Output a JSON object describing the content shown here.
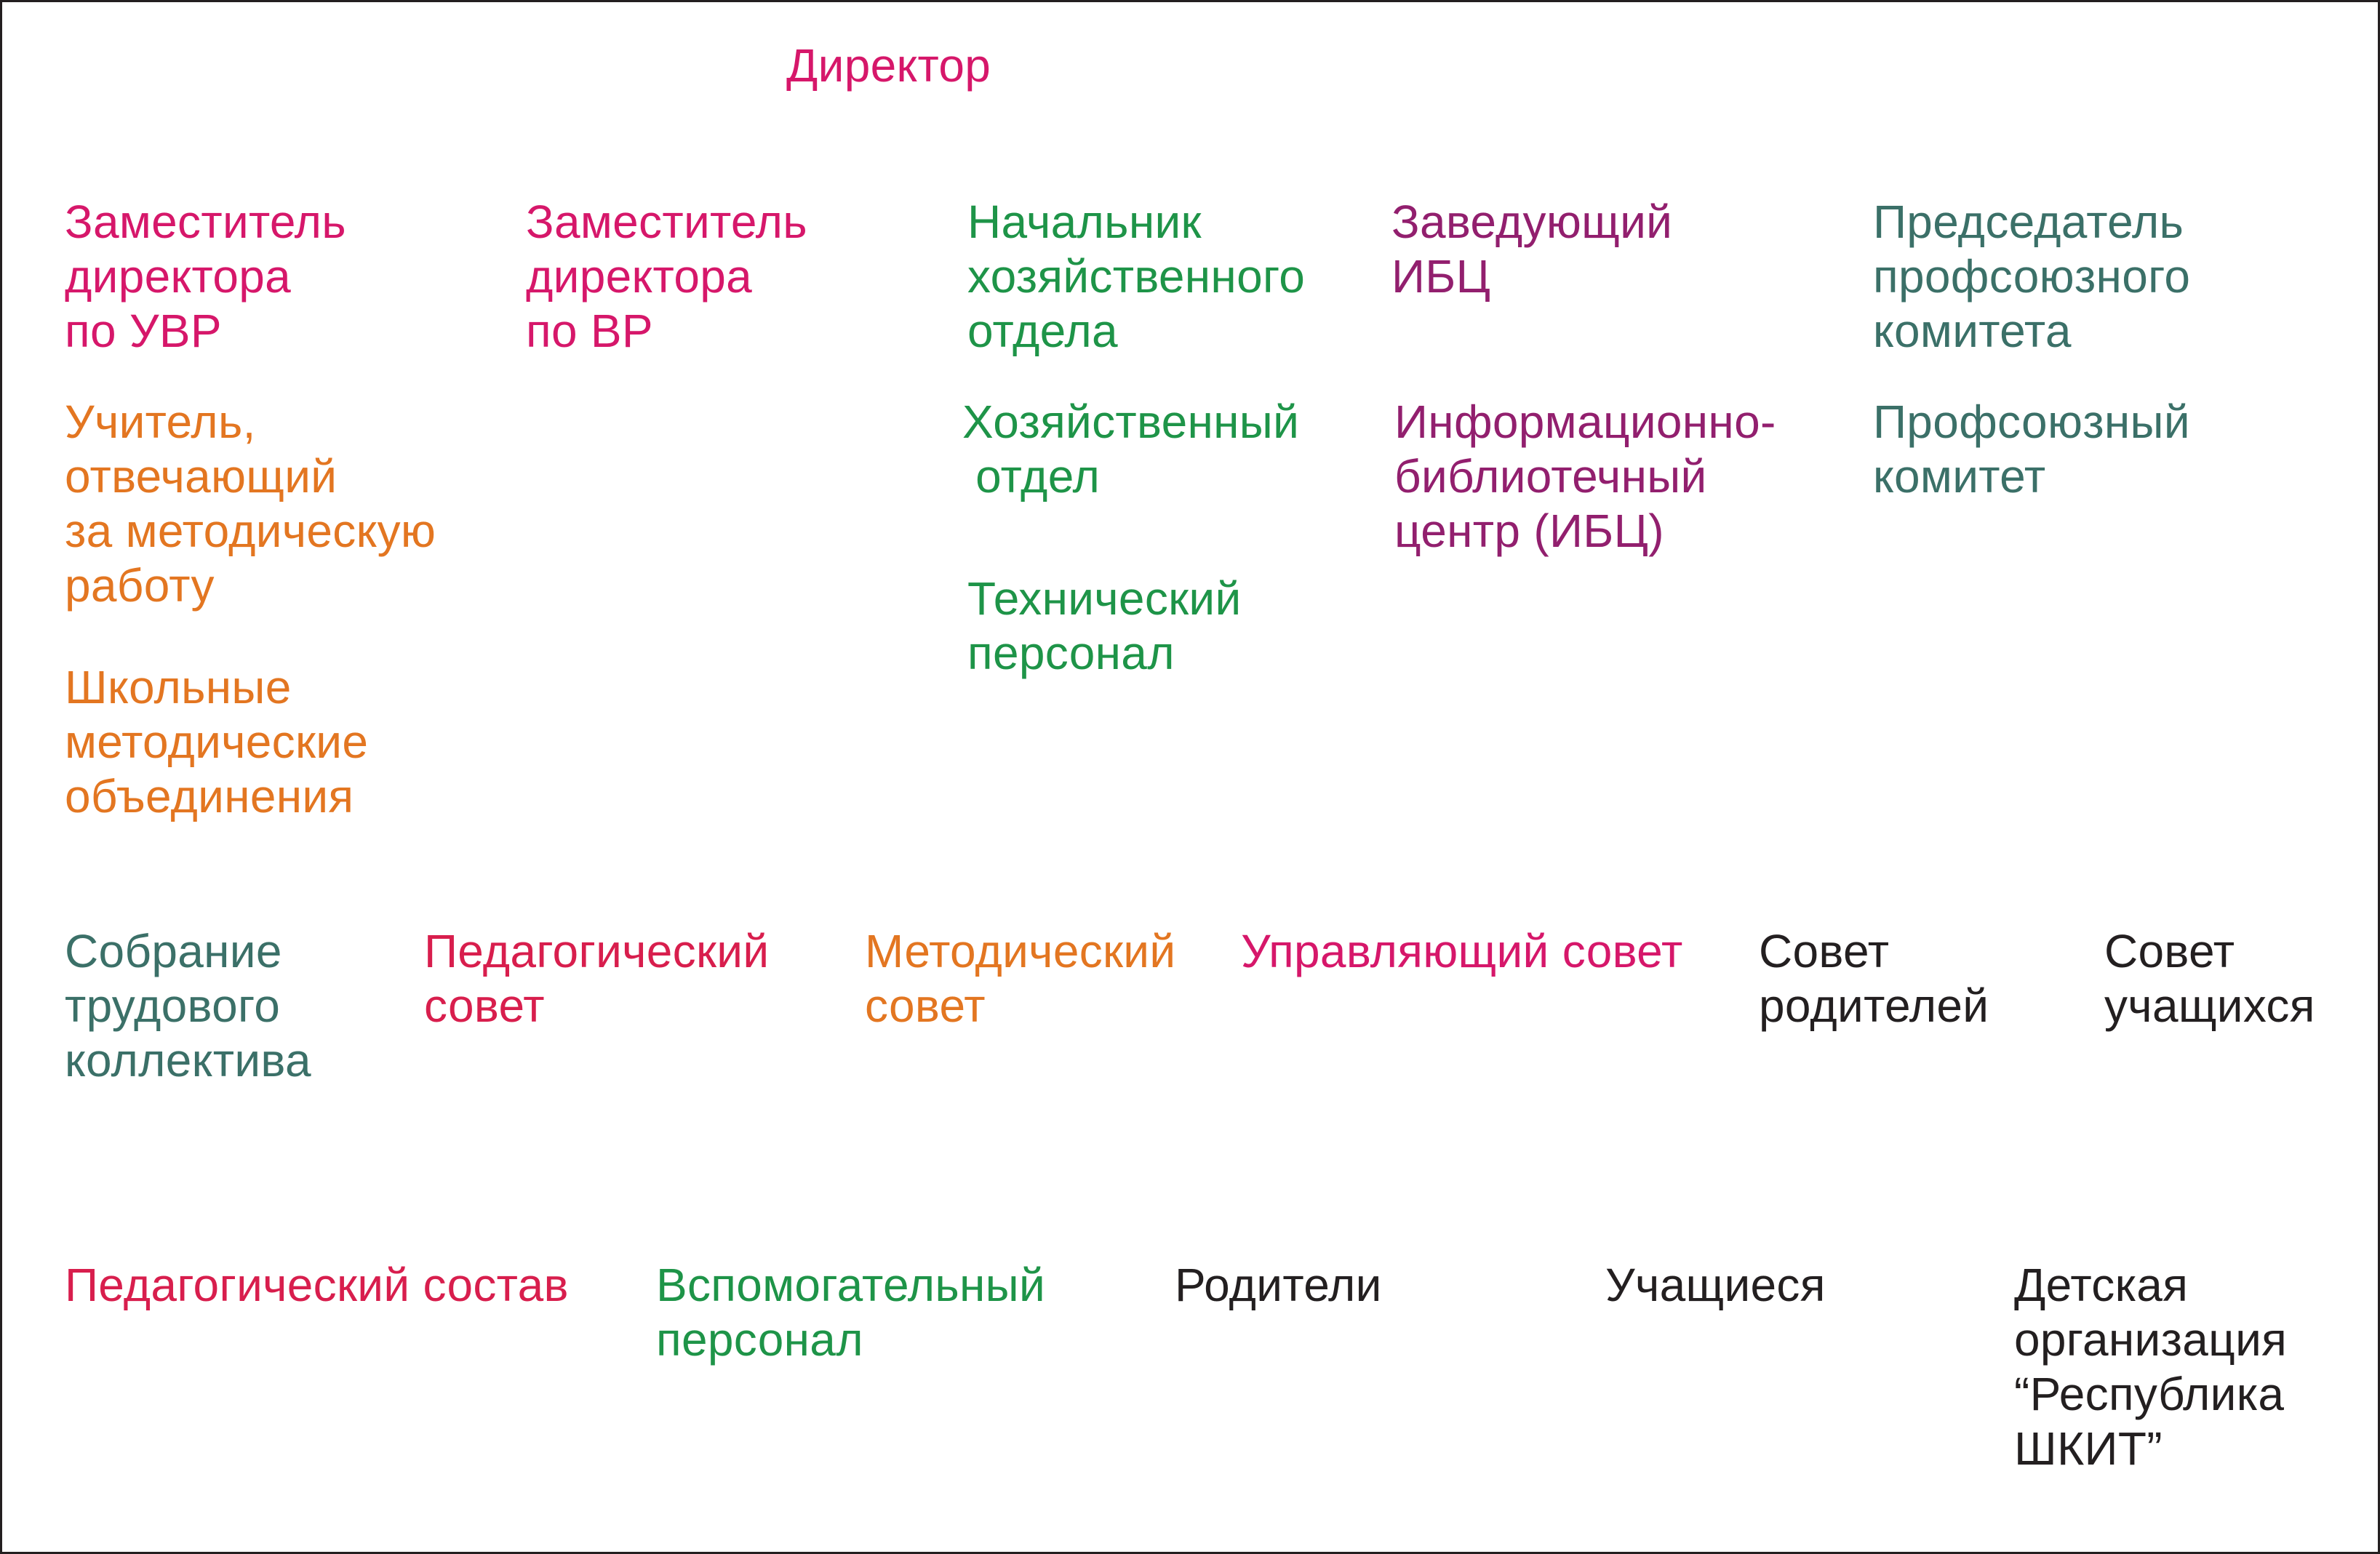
{
  "colors": {
    "magenta": "#d6176a",
    "red": "#d81e4d",
    "orange": "#e37621",
    "green": "#1e9448",
    "purple": "#921f6e",
    "teal": "#3b7068",
    "black": "#231f20",
    "frame": "#231f20",
    "background": "#ffffff"
  },
  "nodes": {
    "director": {
      "text": "Директор",
      "color": "magenta"
    },
    "dep_uvr": {
      "text": "Заместитель\nдиректора\nпо УВР",
      "color": "magenta"
    },
    "dep_vr": {
      "text": "Заместитель\nдиректора\nпо ВР",
      "color": "magenta"
    },
    "head_house": {
      "text": "Начальник\nхозяйственного\nотдела",
      "color": "green"
    },
    "head_ibc": {
      "text": "Заведующий\nИБЦ",
      "color": "purple"
    },
    "chair_union": {
      "text": "Председатель\nпрофсоюзного\nкомитета",
      "color": "teal"
    },
    "teacher_meth": {
      "text": "Учитель,\nотвечающий\nза методическую\nработу",
      "color": "orange"
    },
    "house_dept": {
      "text": "Хозяйственный\n отдел",
      "color": "green"
    },
    "ibc_center": {
      "text": "Информационно-\nбиблиотечный\nцентр (ИБЦ)",
      "color": "purple"
    },
    "union_comm": {
      "text": "Профсоюзный\nкомитет",
      "color": "teal"
    },
    "tech_staff": {
      "text": "Технический\nперсонал",
      "color": "green"
    },
    "school_meth": {
      "text": "Школьные\nметодические\nобъединения",
      "color": "orange"
    },
    "labor_meeting": {
      "text": "Собрание\nтрудового\nколлектива",
      "color": "teal"
    },
    "ped_council": {
      "text": "Педагогический\nсовет",
      "color": "red"
    },
    "meth_council": {
      "text": "Методический\nсовет",
      "color": "orange"
    },
    "gov_council": {
      "text": "Управляющий совет",
      "color": "magenta"
    },
    "parent_council": {
      "text": "Совет\nродителей",
      "color": "black"
    },
    "student_council": {
      "text": "Совет\nучащихся",
      "color": "black"
    },
    "ped_staff": {
      "text": "Педагогический состав",
      "color": "red"
    },
    "aux_staff": {
      "text": "Вспомогательный\nперсонал",
      "color": "green"
    },
    "parents": {
      "text": "Родители",
      "color": "black"
    },
    "students": {
      "text": "Учащиеся",
      "color": "black"
    },
    "children_org": {
      "text": "Детская\nорганизация\n“Республика\nШКИТ”",
      "color": "black"
    }
  }
}
